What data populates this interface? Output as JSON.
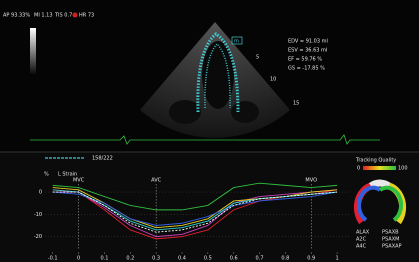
{
  "header": {
    "ap": "AP 93.33%",
    "mi": "MI 1.13",
    "tis": "TIS 0.7",
    "hr": "HR 73"
  },
  "measurements": [
    "EDV = 91.03 ml",
    "ESV = 36.63 ml",
    "EF = 59.76 %",
    "GS = -17.85 %"
  ],
  "image": {
    "label": "m",
    "depth_labels": [
      "5",
      "10",
      "15"
    ]
  },
  "frame_counter": "158/222",
  "strain_plot": {
    "title": "L Strain",
    "y_unit": "%",
    "xlim": [
      -0.13,
      1.05
    ],
    "ylim": [
      -26,
      9
    ],
    "xticks": [
      -0.1,
      0,
      0.1,
      0.2,
      0.3,
      0.4,
      0.5,
      0.6,
      0.7,
      0.8,
      0.9,
      1
    ],
    "yticks": [
      0,
      -10,
      -20
    ],
    "events": [
      {
        "label": "MVC",
        "x": 0
      },
      {
        "label": "AVC",
        "x": 0.3
      },
      {
        "label": "MVO",
        "x": 0.9
      }
    ],
    "x": [
      -0.1,
      0,
      0.1,
      0.2,
      0.3,
      0.4,
      0.5,
      0.6,
      0.7,
      0.8,
      0.9,
      1
    ],
    "series": [
      {
        "color": "#e02030",
        "values": [
          1,
          0,
          -8,
          -17,
          -21,
          -20,
          -17,
          -8,
          -4,
          -2,
          -1,
          1
        ]
      },
      {
        "color": "#d040c0",
        "values": [
          0,
          0,
          -7,
          -15,
          -20,
          -19,
          -15,
          -5,
          -2,
          -1,
          0,
          1
        ]
      },
      {
        "color": "#e8d020",
        "values": [
          2,
          1,
          -5,
          -12,
          -16,
          -15,
          -12,
          -4,
          -3,
          -2,
          0,
          1
        ]
      },
      {
        "color": "#30c040",
        "values": [
          3,
          2,
          -2,
          -6,
          -8,
          -8,
          -6,
          2,
          4,
          3,
          2,
          3
        ]
      },
      {
        "color": "#3060e0",
        "values": [
          0,
          -1,
          -5,
          -12,
          -15,
          -14,
          -11,
          -6,
          -4,
          -3,
          -2,
          0
        ]
      },
      {
        "color": "#30d0d0",
        "values": [
          1,
          0,
          -6,
          -13,
          -17,
          -16,
          -13,
          -5,
          -3,
          -2,
          -1,
          0
        ]
      },
      {
        "color": "#ffffff",
        "style": "dashed",
        "values": [
          0,
          0,
          -6,
          -14,
          -18,
          -17,
          -14,
          -6,
          -3,
          -2,
          -1,
          0
        ]
      }
    ]
  },
  "tracking": {
    "title": "Tracking Quality",
    "min_label": "0",
    "max_label": "100"
  },
  "views": [
    "ALAX",
    "A2C",
    "A4C",
    "PSAXB",
    "PSAXM",
    "PSAXAP"
  ]
}
